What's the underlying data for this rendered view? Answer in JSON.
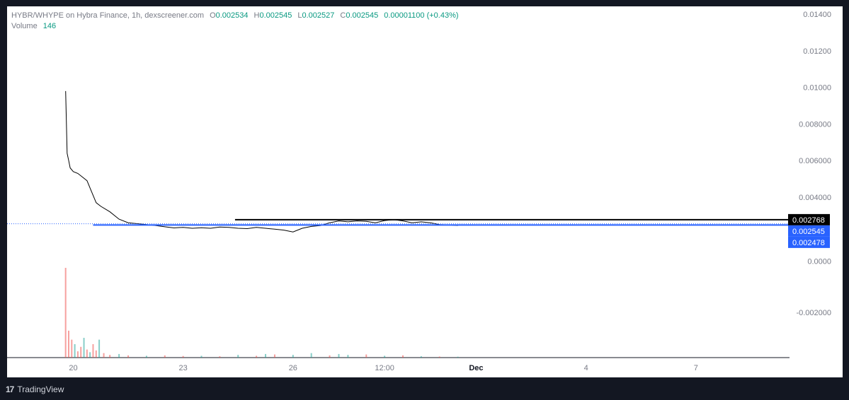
{
  "legend": {
    "pair_line": "HYBR/WHYPE on Hybra Finance, 1h, dexscreener.com",
    "open_key": "O",
    "open": "0.002534",
    "high_key": "H",
    "high": "0.002545",
    "low_key": "L",
    "low": "0.002527",
    "close_key": "C",
    "close": "0.002545",
    "change": "0.00001100 (+0.43%)",
    "volume_label": "Volume",
    "volume": "146"
  },
  "price_tags": {
    "high_line": "0.002768",
    "last_price": "0.002545",
    "low_line": "0.002478"
  },
  "footer": {
    "logo": "17",
    "brand": "TradingView"
  },
  "chart_data": {
    "type": "line",
    "title": "HYBR/WHYPE on Hybra Finance, 1h, dexscreener.com",
    "y_ticks": [
      "0.01400",
      "0.01200",
      "0.01000",
      "0.008000",
      "0.006000",
      "0.004000",
      "0.0000",
      "-0.002000"
    ],
    "x_ticks": [
      "20",
      "23",
      "26",
      "12:00",
      "Dec",
      "4",
      "7"
    ],
    "ylim": [
      -0.0028,
      0.0142
    ],
    "x_range": [
      "Nov 18 00:00",
      "Dec 10 00:00"
    ],
    "horizontal_lines": [
      {
        "name": "high_line",
        "value": 0.002768,
        "from": "Nov 24 10:00",
        "color": "#000000"
      },
      {
        "name": "low_line",
        "value": 0.002478,
        "from": "Nov 20 13:00",
        "color": "#2962ff"
      }
    ],
    "last_price": 0.002545,
    "price_series": {
      "name": "HYBR/WHYPE",
      "x": [
        "Nov 19 19:00",
        "Nov 19 20:00",
        "Nov 19 21:00",
        "Nov 19 22:00",
        "Nov 20 00:00",
        "Nov 20 03:00",
        "Nov 20 06:00",
        "Nov 20 09:00",
        "Nov 20 12:00",
        "Nov 20 15:00",
        "Nov 20 18:00",
        "Nov 21 00:00",
        "Nov 21 06:00",
        "Nov 21 12:00",
        "Nov 21 18:00",
        "Nov 22 00:00",
        "Nov 22 06:00",
        "Nov 22 12:00",
        "Nov 22 18:00",
        "Nov 23 00:00",
        "Nov 23 06:00",
        "Nov 23 12:00",
        "Nov 23 18:00",
        "Nov 24 00:00",
        "Nov 24 06:00",
        "Nov 24 12:00",
        "Nov 24 18:00",
        "Nov 25 00:00",
        "Nov 25 06:00",
        "Nov 25 12:00",
        "Nov 25 18:00",
        "Nov 26 00:00",
        "Nov 26 06:00",
        "Nov 26 12:00",
        "Nov 26 18:00",
        "Nov 27 00:00",
        "Nov 27 06:00",
        "Nov 27 12:00",
        "Nov 27 18:00",
        "Nov 28 00:00",
        "Nov 28 06:00",
        "Nov 28 12:00",
        "Nov 28 18:00",
        "Nov 29 00:00",
        "Nov 29 06:00",
        "Nov 29 12:00",
        "Nov 29 18:00",
        "Nov 30 00:00",
        "Nov 30 06:00",
        "Nov 30 12:00"
      ],
      "values": [
        0.0098,
        0.0064,
        0.006,
        0.0056,
        0.0054,
        0.0053,
        0.0051,
        0.0049,
        0.0043,
        0.0037,
        0.0035,
        0.0032,
        0.0028,
        0.0026,
        0.00255,
        0.0025,
        0.00245,
        0.00238,
        0.00232,
        0.00235,
        0.0023,
        0.00233,
        0.0023,
        0.00237,
        0.00235,
        0.0023,
        0.00228,
        0.00235,
        0.0023,
        0.00225,
        0.0022,
        0.0021,
        0.0023,
        0.0024,
        0.00245,
        0.0026,
        0.0027,
        0.00265,
        0.0027,
        0.00268,
        0.0026,
        0.00272,
        0.00277,
        0.0027,
        0.0026,
        0.00265,
        0.0026,
        0.0025,
        0.00248,
        0.00245
      ]
    },
    "volume_series": {
      "name": "Volume",
      "x": [
        "Nov 19 19:00",
        "Nov 19 21:00",
        "Nov 19 23:00",
        "Nov 20 01:00",
        "Nov 20 03:00",
        "Nov 20 05:00",
        "Nov 20 07:00",
        "Nov 20 09:00",
        "Nov 20 11:00",
        "Nov 20 13:00",
        "Nov 20 15:00",
        "Nov 20 17:00",
        "Nov 20 20:00",
        "Nov 21 00:00",
        "Nov 21 06:00",
        "Nov 21 12:00",
        "Nov 22 00:00",
        "Nov 22 12:00",
        "Nov 23 00:00",
        "Nov 23 12:00",
        "Nov 24 00:00",
        "Nov 24 12:00",
        "Nov 25 00:00",
        "Nov 25 06:00",
        "Nov 25 12:00",
        "Nov 26 00:00",
        "Nov 26 12:00",
        "Nov 27 00:00",
        "Nov 27 06:00",
        "Nov 27 12:00",
        "Nov 28 00:00",
        "Nov 28 12:00",
        "Nov 29 00:00",
        "Nov 29 12:00",
        "Nov 30 00:00",
        "Nov 30 12:00"
      ],
      "values": [
        10000,
        3000,
        2000,
        1500,
        700,
        1200,
        2200,
        900,
        600,
        1500,
        800,
        2000,
        500,
        300,
        400,
        250,
        200,
        250,
        180,
        200,
        150,
        300,
        200,
        400,
        350,
        300,
        500,
        250,
        400,
        300,
        350,
        200,
        250,
        150,
        120,
        100
      ],
      "up": [
        false,
        false,
        false,
        true,
        false,
        false,
        true,
        false,
        true,
        false,
        false,
        true,
        false,
        false,
        true,
        false,
        true,
        false,
        false,
        true,
        false,
        true,
        false,
        true,
        false,
        true,
        true,
        false,
        true,
        true,
        false,
        true,
        false,
        true,
        false,
        true
      ],
      "colors": {
        "up": "#26a69a",
        "down": "#ef5350"
      }
    },
    "colors": {
      "line": "#000000",
      "last_price_line": "#2962ff",
      "up": "#089981",
      "down": "#f23645"
    }
  }
}
